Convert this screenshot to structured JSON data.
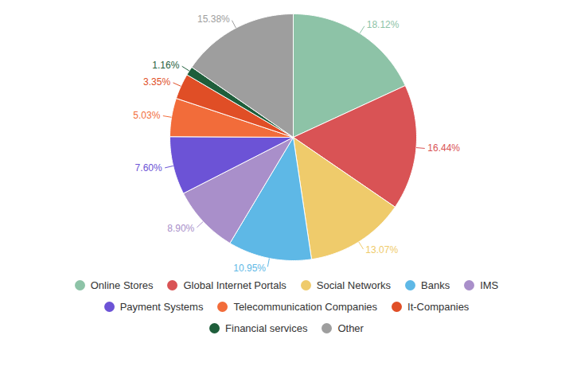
{
  "chart_data": {
    "type": "pie",
    "categories": [
      "Online Stores",
      "Global Internet Portals",
      "Social Networks",
      "Banks",
      "IMS",
      "Payment Systems",
      "Telecommunication Companies",
      "It-Companies",
      "Financial services",
      "Other"
    ],
    "values": [
      18.12,
      16.44,
      13.07,
      10.95,
      8.9,
      7.6,
      5.03,
      3.35,
      1.16,
      15.38
    ],
    "value_labels": [
      "18.12%",
      "16.44%",
      "13.07%",
      "10.95%",
      "8.90%",
      "7.60%",
      "5.03%",
      "3.35%",
      "1.16%",
      "15.38%"
    ],
    "colors": [
      "#8dc3a7",
      "#d95355",
      "#efcb6b",
      "#5eb8e6",
      "#a98fca",
      "#6c53d6",
      "#f26c3a",
      "#e04e26",
      "#1e5e3b",
      "#9e9e9e"
    ],
    "data_labels": true,
    "legend": "bottom"
  }
}
